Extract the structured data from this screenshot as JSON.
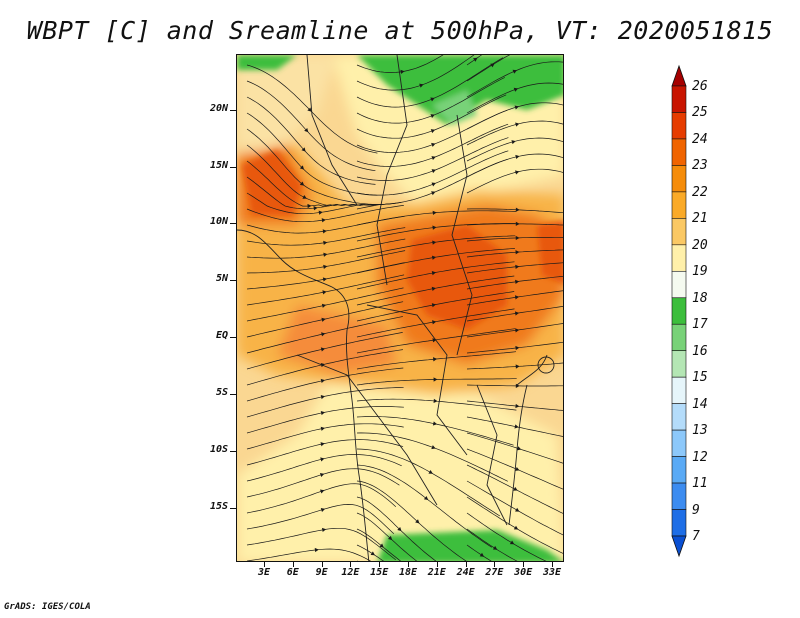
{
  "title": "WBPT [C] and Sreamline at 500hPa, VT: 2020051815",
  "credit": "GrADS: IGES/COLA",
  "lat_labels": [
    "20N",
    "15N",
    "10N",
    "5N",
    "EQ",
    "5S",
    "10S",
    "15S"
  ],
  "lon_labels": [
    "3E",
    "6E",
    "9E",
    "12E",
    "15E",
    "18E",
    "21E",
    "24E",
    "27E",
    "30E",
    "33E"
  ],
  "colorbar": {
    "labels": [
      "26",
      "25",
      "24",
      "23",
      "22",
      "21",
      "20",
      "19",
      "18",
      "17",
      "16",
      "15",
      "14",
      "13",
      "12",
      "11",
      "9",
      "7"
    ],
    "colors": [
      "#a50000",
      "#c81400",
      "#e63c00",
      "#f06400",
      "#f58c0a",
      "#faaa28",
      "#fac864",
      "#fff0aa",
      "#f5faf0",
      "#3cbe3c",
      "#78d278",
      "#b4e6b4",
      "#e6f5fa",
      "#b4dcfa",
      "#8cc8fa",
      "#5aaaf5",
      "#3c8cf0",
      "#1e6ee6",
      "#0a50d2"
    ],
    "extend": "both"
  }
}
